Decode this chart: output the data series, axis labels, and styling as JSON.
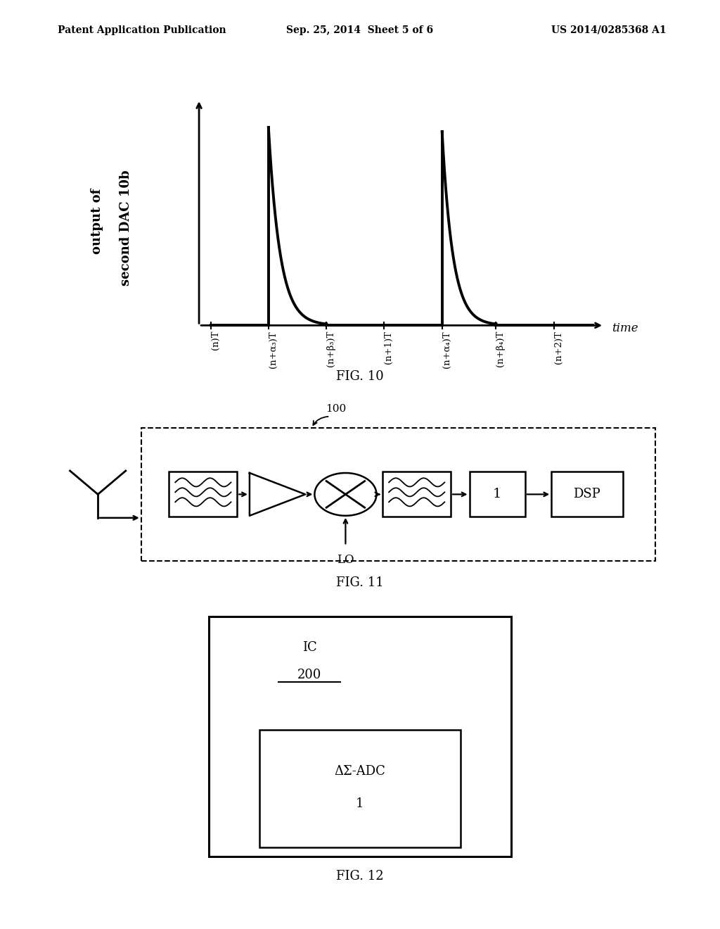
{
  "bg_color": "#ffffff",
  "header_left": "Patent Application Publication",
  "header_center": "Sep. 25, 2014  Sheet 5 of 6",
  "header_right": "US 2014/0285368 A1",
  "fig10_ylabel_line1": "output of",
  "fig10_ylabel_line2": "second DAC 10b",
  "fig10_xlabel": "time",
  "fig10_caption": "FIG. 10",
  "fig10_xtick_labels": [
    "(n)T",
    "(n+α₃)T",
    "(n+β₃)T",
    "(n+1)T",
    "(n+α₄)T",
    "(n+β₄)T",
    "(n+2)T"
  ],
  "fig11_caption": "FIG. 11",
  "fig11_label": "100",
  "fig11_lo_label": "LO",
  "fig12_caption": "FIG. 12",
  "fig12_outer_label": "IC",
  "fig12_outer_number": "200",
  "fig12_inner_label_line1": "ΔΣ-ADC",
  "fig12_inner_label_line2": "1"
}
